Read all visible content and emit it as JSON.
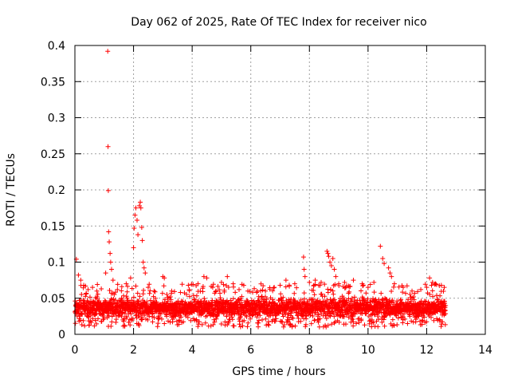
{
  "chart_data": {
    "type": "scatter",
    "title": "Day 062 of 2025, Rate Of TEC Index for receiver nico",
    "xlabel": "GPS time / hours",
    "ylabel": "ROTI / TECUs",
    "xlim": [
      0,
      14
    ],
    "ylim": [
      0,
      0.4
    ],
    "grid": true,
    "marker": "+",
    "x_ticks": [
      0,
      2,
      4,
      6,
      8,
      10,
      12,
      14
    ],
    "x_tick_labels": [
      "0",
      "2",
      "4",
      "6",
      "8",
      "10",
      "12",
      "14"
    ],
    "y_ticks": [
      0,
      0.05,
      0.1,
      0.15,
      0.2,
      0.25,
      0.3,
      0.35,
      0.4
    ],
    "y_tick_labels": [
      "0",
      "0.05",
      "0.1",
      "0.15",
      "0.2",
      "0.25",
      "0.3",
      "0.35",
      "0.4"
    ],
    "series": [
      {
        "name": "ROTI",
        "color": "#ff0000",
        "data_range_hours": [
          0,
          12.65
        ],
        "typical_band": [
          0.01,
          0.06
        ],
        "points": [
          [
            0.05,
            0.104
          ],
          [
            0.12,
            0.082
          ],
          [
            0.2,
            0.075
          ],
          [
            0.3,
            0.068
          ],
          [
            0.45,
            0.062
          ],
          [
            0.6,
            0.065
          ],
          [
            0.75,
            0.06
          ],
          [
            0.9,
            0.063
          ],
          [
            1.05,
            0.085
          ],
          [
            1.12,
            0.392
          ],
          [
            1.13,
            0.26
          ],
          [
            1.14,
            0.199
          ],
          [
            1.15,
            0.142
          ],
          [
            1.17,
            0.128
          ],
          [
            1.2,
            0.112
          ],
          [
            1.22,
            0.1
          ],
          [
            1.25,
            0.09
          ],
          [
            1.3,
            0.075
          ],
          [
            1.45,
            0.062
          ],
          [
            1.6,
            0.066
          ],
          [
            1.75,
            0.07
          ],
          [
            1.9,
            0.078
          ],
          [
            2.0,
            0.12
          ],
          [
            2.02,
            0.147
          ],
          [
            2.05,
            0.165
          ],
          [
            2.08,
            0.175
          ],
          [
            2.12,
            0.158
          ],
          [
            2.15,
            0.138
          ],
          [
            2.2,
            0.178
          ],
          [
            2.23,
            0.183
          ],
          [
            2.25,
            0.175
          ],
          [
            2.28,
            0.148
          ],
          [
            2.3,
            0.13
          ],
          [
            2.33,
            0.1
          ],
          [
            2.36,
            0.092
          ],
          [
            2.4,
            0.085
          ],
          [
            2.5,
            0.065
          ],
          [
            2.7,
            0.06
          ],
          [
            3.0,
            0.08
          ],
          [
            3.05,
            0.078
          ],
          [
            3.3,
            0.06
          ],
          [
            3.6,
            0.058
          ],
          [
            3.9,
            0.062
          ],
          [
            4.2,
            0.07
          ],
          [
            4.4,
            0.08
          ],
          [
            4.5,
            0.078
          ],
          [
            4.7,
            0.065
          ],
          [
            5.0,
            0.072
          ],
          [
            5.2,
            0.08
          ],
          [
            5.4,
            0.07
          ],
          [
            5.6,
            0.062
          ],
          [
            5.9,
            0.06
          ],
          [
            6.2,
            0.058
          ],
          [
            6.5,
            0.06
          ],
          [
            6.8,
            0.065
          ],
          [
            7.0,
            0.068
          ],
          [
            7.2,
            0.075
          ],
          [
            7.5,
            0.07
          ],
          [
            7.8,
            0.107
          ],
          [
            7.82,
            0.09
          ],
          [
            7.85,
            0.08
          ],
          [
            8.0,
            0.072
          ],
          [
            8.2,
            0.075
          ],
          [
            8.4,
            0.072
          ],
          [
            8.6,
            0.115
          ],
          [
            8.63,
            0.112
          ],
          [
            8.66,
            0.108
          ],
          [
            8.7,
            0.1
          ],
          [
            8.75,
            0.095
          ],
          [
            8.8,
            0.105
          ],
          [
            8.85,
            0.09
          ],
          [
            8.9,
            0.08
          ],
          [
            9.0,
            0.07
          ],
          [
            9.2,
            0.072
          ],
          [
            9.5,
            0.075
          ],
          [
            9.8,
            0.07
          ],
          [
            10.0,
            0.065
          ],
          [
            10.2,
            0.072
          ],
          [
            10.42,
            0.122
          ],
          [
            10.5,
            0.105
          ],
          [
            10.55,
            0.098
          ],
          [
            10.7,
            0.092
          ],
          [
            10.75,
            0.085
          ],
          [
            10.8,
            0.08
          ],
          [
            10.9,
            0.07
          ],
          [
            11.2,
            0.065
          ],
          [
            11.5,
            0.06
          ],
          [
            11.8,
            0.062
          ],
          [
            12.0,
            0.065
          ],
          [
            12.1,
            0.078
          ],
          [
            12.2,
            0.072
          ],
          [
            12.3,
            0.07
          ],
          [
            12.5,
            0.068
          ],
          [
            12.6,
            0.065
          ]
        ]
      }
    ]
  }
}
